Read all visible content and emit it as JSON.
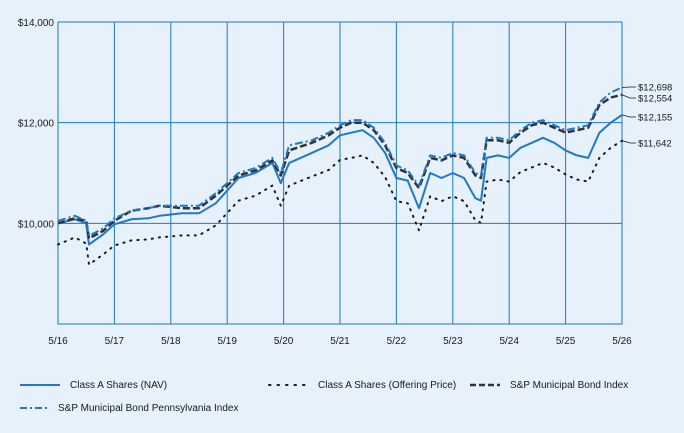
{
  "chart_data": {
    "type": "line",
    "title": "",
    "xlabel": "",
    "ylabel": "",
    "x_ticks": [
      "5/16",
      "5/17",
      "5/18",
      "5/19",
      "5/20",
      "5/21",
      "5/22",
      "5/23",
      "5/24",
      "5/25",
      "5/26"
    ],
    "y_ticks": [
      "$14,000",
      "$12,000",
      "$10,000"
    ],
    "ylim": [
      8000,
      14000
    ],
    "xlim": [
      0,
      10
    ],
    "grid": true,
    "legend_position": "bottom",
    "series": [
      {
        "name": "Class A Shares (NAV)",
        "style": "solid",
        "color": "#1f78c8",
        "end_label": "$12,155",
        "points": [
          [
            0,
            10000
          ],
          [
            0.3,
            10080
          ],
          [
            0.5,
            10000
          ],
          [
            0.55,
            9580
          ],
          [
            0.8,
            9780
          ],
          [
            1,
            9980
          ],
          [
            1.3,
            10080
          ],
          [
            1.6,
            10100
          ],
          [
            1.8,
            10150
          ],
          [
            2.2,
            10200
          ],
          [
            2.5,
            10200
          ],
          [
            2.8,
            10400
          ],
          [
            3.2,
            10900
          ],
          [
            3.5,
            11000
          ],
          [
            3.8,
            11200
          ],
          [
            3.95,
            10800
          ],
          [
            4.1,
            11200
          ],
          [
            4.5,
            11400
          ],
          [
            4.8,
            11550
          ],
          [
            5.0,
            11750
          ],
          [
            5.2,
            11800
          ],
          [
            5.4,
            11850
          ],
          [
            5.6,
            11700
          ],
          [
            5.8,
            11400
          ],
          [
            6.0,
            10900
          ],
          [
            6.2,
            10850
          ],
          [
            6.4,
            10300
          ],
          [
            6.6,
            11000
          ],
          [
            6.8,
            10900
          ],
          [
            7.0,
            11000
          ],
          [
            7.2,
            10900
          ],
          [
            7.4,
            10500
          ],
          [
            7.5,
            10450
          ],
          [
            7.6,
            11300
          ],
          [
            7.8,
            11350
          ],
          [
            8.0,
            11300
          ],
          [
            8.2,
            11500
          ],
          [
            8.4,
            11600
          ],
          [
            8.6,
            11700
          ],
          [
            8.8,
            11600
          ],
          [
            9.0,
            11450
          ],
          [
            9.2,
            11350
          ],
          [
            9.4,
            11300
          ],
          [
            9.6,
            11800
          ],
          [
            9.8,
            12000
          ],
          [
            10,
            12155
          ]
        ]
      },
      {
        "name": "Class A Shares (Offering Price)",
        "style": "dotted",
        "color": "#1a1a1a",
        "end_label": "$11,642",
        "points": [
          [
            0,
            9580
          ],
          [
            0.3,
            9720
          ],
          [
            0.5,
            9600
          ],
          [
            0.55,
            9180
          ],
          [
            0.8,
            9380
          ],
          [
            1,
            9560
          ],
          [
            1.3,
            9660
          ],
          [
            1.6,
            9680
          ],
          [
            1.8,
            9720
          ],
          [
            2.2,
            9760
          ],
          [
            2.5,
            9760
          ],
          [
            2.8,
            9960
          ],
          [
            3.2,
            10450
          ],
          [
            3.5,
            10550
          ],
          [
            3.8,
            10750
          ],
          [
            3.95,
            10350
          ],
          [
            4.1,
            10750
          ],
          [
            4.5,
            10930
          ],
          [
            4.8,
            11060
          ],
          [
            5.0,
            11260
          ],
          [
            5.2,
            11300
          ],
          [
            5.4,
            11350
          ],
          [
            5.6,
            11200
          ],
          [
            5.8,
            10920
          ],
          [
            6.0,
            10440
          ],
          [
            6.2,
            10400
          ],
          [
            6.4,
            9860
          ],
          [
            6.6,
            10540
          ],
          [
            6.8,
            10440
          ],
          [
            7.0,
            10540
          ],
          [
            7.2,
            10440
          ],
          [
            7.4,
            10060
          ],
          [
            7.5,
            10010
          ],
          [
            7.6,
            10830
          ],
          [
            7.8,
            10870
          ],
          [
            8.0,
            10830
          ],
          [
            8.2,
            11020
          ],
          [
            8.4,
            11110
          ],
          [
            8.6,
            11200
          ],
          [
            8.8,
            11110
          ],
          [
            9.0,
            10970
          ],
          [
            9.2,
            10870
          ],
          [
            9.4,
            10830
          ],
          [
            9.6,
            11300
          ],
          [
            9.8,
            11500
          ],
          [
            10,
            11642
          ]
        ]
      },
      {
        "name": "S&P Municipal Bond Index",
        "style": "dashed",
        "color": "#333333",
        "end_label": "$12,554",
        "points": [
          [
            0,
            10000
          ],
          [
            0.3,
            10100
          ],
          [
            0.5,
            10050
          ],
          [
            0.55,
            9700
          ],
          [
            0.8,
            9850
          ],
          [
            1,
            10050
          ],
          [
            1.3,
            10250
          ],
          [
            1.6,
            10300
          ],
          [
            1.8,
            10350
          ],
          [
            2.2,
            10300
          ],
          [
            2.5,
            10300
          ],
          [
            2.8,
            10550
          ],
          [
            3.2,
            10950
          ],
          [
            3.5,
            11050
          ],
          [
            3.8,
            11250
          ],
          [
            3.95,
            10950
          ],
          [
            4.1,
            11450
          ],
          [
            4.5,
            11600
          ],
          [
            4.8,
            11750
          ],
          [
            5.0,
            11900
          ],
          [
            5.2,
            12000
          ],
          [
            5.4,
            12000
          ],
          [
            5.6,
            11850
          ],
          [
            5.8,
            11550
          ],
          [
            6.0,
            11100
          ],
          [
            6.2,
            11000
          ],
          [
            6.4,
            10700
          ],
          [
            6.6,
            11300
          ],
          [
            6.8,
            11250
          ],
          [
            7.0,
            11350
          ],
          [
            7.2,
            11300
          ],
          [
            7.4,
            10950
          ],
          [
            7.5,
            10900
          ],
          [
            7.6,
            11650
          ],
          [
            7.8,
            11650
          ],
          [
            8.0,
            11600
          ],
          [
            8.2,
            11800
          ],
          [
            8.4,
            11950
          ],
          [
            8.6,
            12000
          ],
          [
            8.8,
            11900
          ],
          [
            9.0,
            11800
          ],
          [
            9.2,
            11850
          ],
          [
            9.4,
            11900
          ],
          [
            9.6,
            12350
          ],
          [
            9.8,
            12500
          ],
          [
            10,
            12554
          ]
        ]
      },
      {
        "name": "S&P Municipal Bond Pennsylvania Index",
        "style": "dashdot",
        "color": "#1f78c8",
        "end_label": "$12,698",
        "points": [
          [
            0,
            10050
          ],
          [
            0.3,
            10150
          ],
          [
            0.5,
            10050
          ],
          [
            0.55,
            9750
          ],
          [
            0.8,
            9900
          ],
          [
            1,
            10100
          ],
          [
            1.3,
            10250
          ],
          [
            1.6,
            10300
          ],
          [
            1.8,
            10350
          ],
          [
            2.2,
            10350
          ],
          [
            2.5,
            10350
          ],
          [
            2.8,
            10600
          ],
          [
            3.2,
            11000
          ],
          [
            3.5,
            11100
          ],
          [
            3.8,
            11300
          ],
          [
            3.95,
            11000
          ],
          [
            4.1,
            11550
          ],
          [
            4.5,
            11650
          ],
          [
            4.8,
            11800
          ],
          [
            5.0,
            11950
          ],
          [
            5.2,
            12050
          ],
          [
            5.4,
            12050
          ],
          [
            5.6,
            11900
          ],
          [
            5.8,
            11600
          ],
          [
            6.0,
            11150
          ],
          [
            6.2,
            11050
          ],
          [
            6.4,
            10750
          ],
          [
            6.6,
            11350
          ],
          [
            6.8,
            11300
          ],
          [
            7.0,
            11400
          ],
          [
            7.2,
            11350
          ],
          [
            7.4,
            11000
          ],
          [
            7.5,
            10950
          ],
          [
            7.6,
            11700
          ],
          [
            7.8,
            11700
          ],
          [
            8.0,
            11650
          ],
          [
            8.2,
            11850
          ],
          [
            8.4,
            12000
          ],
          [
            8.6,
            12050
          ],
          [
            8.8,
            11950
          ],
          [
            9.0,
            11850
          ],
          [
            9.2,
            11900
          ],
          [
            9.4,
            11950
          ],
          [
            9.6,
            12400
          ],
          [
            9.8,
            12600
          ],
          [
            10,
            12698
          ]
        ]
      }
    ]
  }
}
